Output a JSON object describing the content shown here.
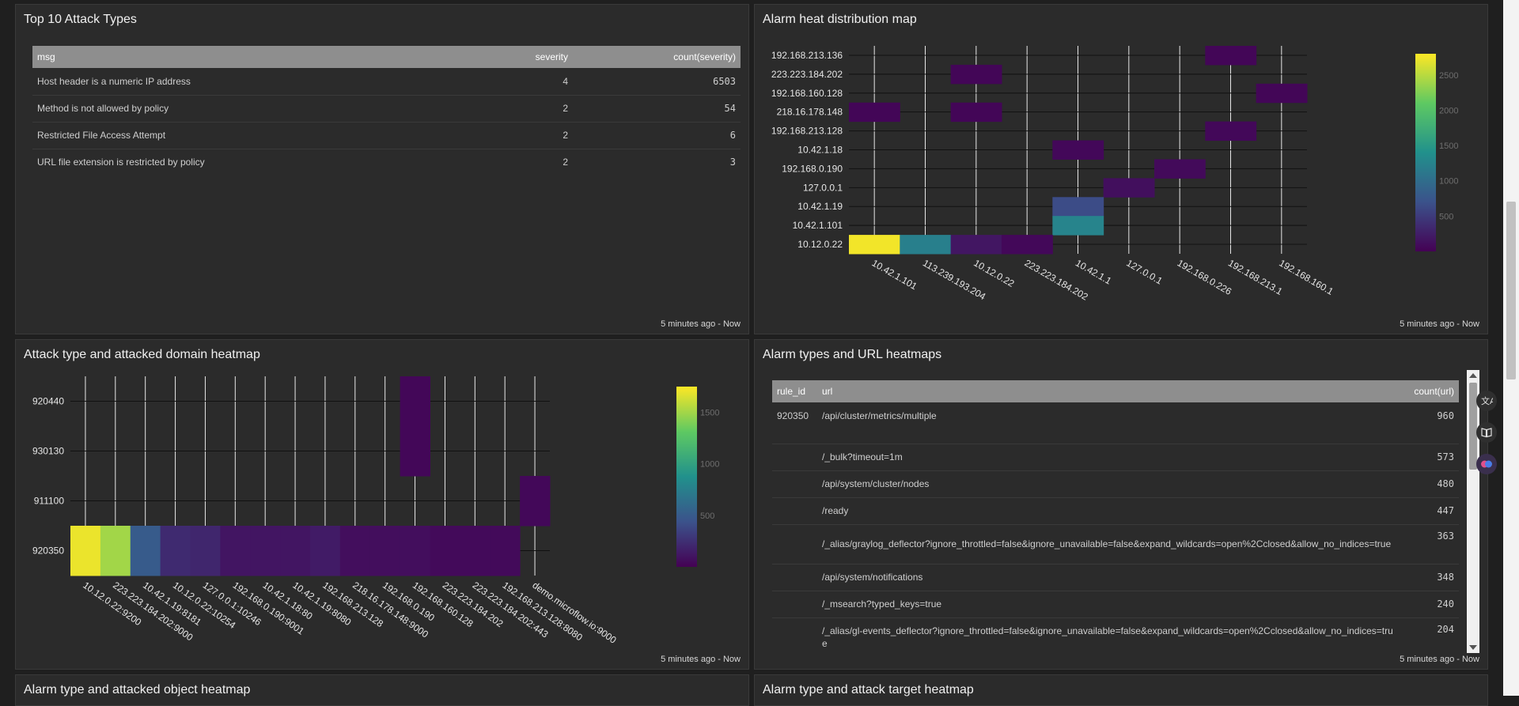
{
  "panels": {
    "attack_types": {
      "title": "Top 10 Attack Types",
      "footer": "5 minutes ago - Now",
      "columns": {
        "msg": "msg",
        "severity": "severity",
        "count": "count(severity)"
      },
      "rows": [
        {
          "msg": "Host header is a numeric IP address",
          "severity": "4",
          "count": "6503"
        },
        {
          "msg": "Method is not allowed by policy",
          "severity": "2",
          "count": "54"
        },
        {
          "msg": "Restricted File Access Attempt",
          "severity": "2",
          "count": "6"
        },
        {
          "msg": "URL file extension is restricted by policy",
          "severity": "2",
          "count": "3"
        }
      ]
    },
    "alarm_heat": {
      "title": "Alarm heat distribution map",
      "footer": "5 minutes ago - Now"
    },
    "attack_domain": {
      "title": "Attack type and attacked domain heatmap",
      "footer": "5 minutes ago - Now"
    },
    "url_heatmaps": {
      "title": "Alarm types and URL heatmaps",
      "footer": "5 minutes ago - Now",
      "columns": {
        "rule_id": "rule_id",
        "url": "url",
        "count": "count(url)"
      },
      "rows": [
        {
          "rule_id": "920350",
          "url": "/api/cluster/metrics/multiple",
          "count": "960"
        },
        {
          "rule_id": "",
          "url": "/_bulk?timeout=1m",
          "count": "573"
        },
        {
          "rule_id": "",
          "url": "/api/system/cluster/nodes",
          "count": "480"
        },
        {
          "rule_id": "",
          "url": "/ready",
          "count": "447"
        },
        {
          "rule_id": "",
          "url": "/_alias/graylog_deflector?ignore_throttled=false&ignore_unavailable=false&expand_wildcards=open%2Cclosed&allow_no_indices=true",
          "count": "363"
        },
        {
          "rule_id": "",
          "url": "/api/system/notifications",
          "count": "348"
        },
        {
          "rule_id": "",
          "url": "/_msearch?typed_keys=true",
          "count": "240"
        },
        {
          "rule_id": "",
          "url": "/_alias/gl-events_deflector?ignore_throttled=false&ignore_unavailable=false&expand_wildcards=open%2Cclosed&allow_no_indices=true",
          "count": "204"
        }
      ]
    },
    "attacked_object": {
      "title": "Alarm type and attacked object heatmap"
    },
    "attack_target": {
      "title": "Alarm type and attack target heatmap"
    }
  },
  "icons": [
    "translate-icon",
    "book-icon",
    "brain-icon"
  ],
  "colorscale": [
    "#440154",
    "#3b528b",
    "#21918c",
    "#5ec962",
    "#fde725"
  ],
  "chart_data": [
    {
      "type": "heatmap",
      "x": [
        "10.42.1.101",
        "113.239.193.204",
        "10.12.0.22",
        "223.223.184.202",
        "10.42.1.1",
        "127.0.0.1",
        "192.168.0.226",
        "192.168.213.1",
        "192.168.160.1"
      ],
      "y": [
        "192.168.213.136",
        "223.223.184.202",
        "192.168.160.128",
        "218.16.178.148",
        "192.168.213.128",
        "10.42.1.18",
        "192.168.0.190",
        "127.0.0.1",
        "10.42.1.19",
        "10.42.1.101",
        "10.12.0.22"
      ],
      "colorbar": {
        "ticks": [
          500,
          1000,
          1500,
          2000,
          2500
        ],
        "range": [
          0,
          2800
        ]
      },
      "cells": [
        {
          "x": "192.168.213.1",
          "y": "192.168.213.136",
          "value": 40
        },
        {
          "x": "10.12.0.22",
          "y": "223.223.184.202",
          "value": 40
        },
        {
          "x": "192.168.160.1",
          "y": "192.168.160.128",
          "value": 40
        },
        {
          "x": "10.42.1.101",
          "y": "218.16.178.148",
          "value": 40
        },
        {
          "x": "10.12.0.22",
          "y": "218.16.178.148",
          "value": 40
        },
        {
          "x": "192.168.213.1",
          "y": "192.168.213.128",
          "value": 60
        },
        {
          "x": "10.42.1.1",
          "y": "10.42.1.18",
          "value": 60
        },
        {
          "x": "192.168.0.226",
          "y": "192.168.0.190",
          "value": 80
        },
        {
          "x": "127.0.0.1",
          "y": "127.0.0.1",
          "value": 120
        },
        {
          "x": "10.42.1.1",
          "y": "10.42.1.19",
          "value": 650
        },
        {
          "x": "10.42.1.1",
          "y": "10.42.1.101",
          "value": 1250
        },
        {
          "x": "10.42.1.101",
          "y": "10.12.0.22",
          "value": 2750
        },
        {
          "x": "113.239.193.204",
          "y": "10.12.0.22",
          "value": 1200
        },
        {
          "x": "10.12.0.22",
          "y": "10.12.0.22",
          "value": 180
        },
        {
          "x": "223.223.184.202",
          "y": "10.12.0.22",
          "value": 60
        }
      ]
    },
    {
      "type": "heatmap",
      "x": [
        "10.12.0.22:9200",
        "223.223.184.202:9000",
        "10.42.1.19:8181",
        "10.12.0.22:10254",
        "127.0.0.1:10246",
        "192.168.0.190:9001",
        "10.42.1.18:80",
        "10.42.1.19:8080",
        "192.168.213.128",
        "218.16.178.148:9000",
        "192.168.0.190",
        "192.168.160.128",
        "223.223.184.202",
        "223.223.184.202:443",
        "192.168.213.128:8080",
        "demo.microflow.io:9000"
      ],
      "y": [
        "920440",
        "930130",
        "911100",
        "920350"
      ],
      "colorbar": {
        "ticks": [
          500,
          1000,
          1500
        ],
        "range": [
          0,
          1750
        ]
      },
      "cells": [
        {
          "x": "192.168.160.128",
          "y": "920440",
          "value": 30
        },
        {
          "x": "192.168.160.128",
          "y": "930130",
          "value": 30
        },
        {
          "x": "demo.microflow.io:9000",
          "y": "911100",
          "value": 40
        },
        {
          "x": "10.12.0.22:9200",
          "y": "920350",
          "value": 1700
        },
        {
          "x": "223.223.184.202:9000",
          "y": "920350",
          "value": 1500
        },
        {
          "x": "10.42.1.19:8181",
          "y": "920350",
          "value": 500
        },
        {
          "x": "10.12.0.22:10254",
          "y": "920350",
          "value": 220
        },
        {
          "x": "127.0.0.1:10246",
          "y": "920350",
          "value": 200
        },
        {
          "x": "192.168.0.190:9001",
          "y": "920350",
          "value": 110
        },
        {
          "x": "10.42.1.18:80",
          "y": "920350",
          "value": 110
        },
        {
          "x": "10.42.1.19:8080",
          "y": "920350",
          "value": 110
        },
        {
          "x": "192.168.213.128",
          "y": "920350",
          "value": 140
        },
        {
          "x": "218.16.178.148:9000",
          "y": "920350",
          "value": 70
        },
        {
          "x": "192.168.0.190",
          "y": "920350",
          "value": 70
        },
        {
          "x": "192.168.160.128",
          "y": "920350",
          "value": 70
        },
        {
          "x": "223.223.184.202",
          "y": "920350",
          "value": 50
        },
        {
          "x": "223.223.184.202:443",
          "y": "920350",
          "value": 50
        },
        {
          "x": "192.168.213.128:8080",
          "y": "920350",
          "value": 50
        }
      ]
    }
  ]
}
